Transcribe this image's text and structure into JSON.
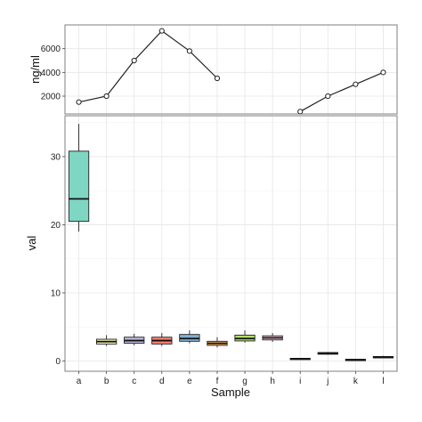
{
  "chart_data": [
    {
      "type": "line",
      "xlabel": "",
      "ylabel": "ng/ml",
      "categories": [
        "a",
        "b",
        "c",
        "d",
        "e",
        "f",
        "g",
        "h",
        "i",
        "j",
        "k",
        "l"
      ],
      "values": [
        1500,
        2000,
        5000,
        7500,
        5800,
        3500,
        null,
        null,
        700,
        2000,
        3000,
        4000
      ],
      "yticks": [
        2000,
        4000,
        6000
      ],
      "ylim": [
        500,
        8000
      ],
      "grid": true
    },
    {
      "type": "box",
      "xlabel": "Sample",
      "ylabel": "val",
      "categories": [
        "a",
        "b",
        "c",
        "d",
        "e",
        "f",
        "g",
        "h",
        "i",
        "j",
        "k",
        "l"
      ],
      "boxes": [
        {
          "min": 19,
          "q1": 20.5,
          "median": 23.8,
          "q3": 30.8,
          "max": 34.8,
          "color": "#7fd6c2"
        },
        {
          "min": 2.2,
          "q1": 2.5,
          "median": 2.85,
          "q3": 3.2,
          "max": 3.8,
          "color": "#ffffb3"
        },
        {
          "min": 2.3,
          "q1": 2.6,
          "median": 3.0,
          "q3": 3.5,
          "max": 4.0,
          "color": "#bebada"
        },
        {
          "min": 2.2,
          "q1": 2.5,
          "median": 3.0,
          "q3": 3.5,
          "max": 4.1,
          "color": "#fb8072"
        },
        {
          "min": 2.6,
          "q1": 2.9,
          "median": 3.3,
          "q3": 3.9,
          "max": 4.5,
          "color": "#80b1d3"
        },
        {
          "min": 2.0,
          "q1": 2.3,
          "median": 2.6,
          "q3": 2.9,
          "max": 3.5,
          "color": "#fdb462"
        },
        {
          "min": 2.7,
          "q1": 2.95,
          "median": 3.3,
          "q3": 3.8,
          "max": 4.5,
          "color": "#b3de69"
        },
        {
          "min": 2.8,
          "q1": 3.1,
          "median": 3.4,
          "q3": 3.7,
          "max": 4.1,
          "color": "#fccde5"
        },
        {
          "min": 0.25,
          "q1": 0.3,
          "median": 0.35,
          "q3": 0.4,
          "max": 0.45,
          "color": "#d9d9d9"
        },
        {
          "min": 0.9,
          "q1": 1.0,
          "median": 1.1,
          "q3": 1.25,
          "max": 1.35,
          "color": "#bc80bd"
        },
        {
          "min": 0.1,
          "q1": 0.15,
          "median": 0.2,
          "q3": 0.25,
          "max": 0.3,
          "color": "#ccebc5"
        },
        {
          "min": 0.45,
          "q1": 0.5,
          "median": 0.6,
          "q3": 0.65,
          "max": 0.75,
          "color": "#ffed6f"
        }
      ],
      "yticks": [
        0,
        10,
        20,
        30
      ],
      "ylim": [
        -1.5,
        36
      ],
      "grid": true
    }
  ]
}
